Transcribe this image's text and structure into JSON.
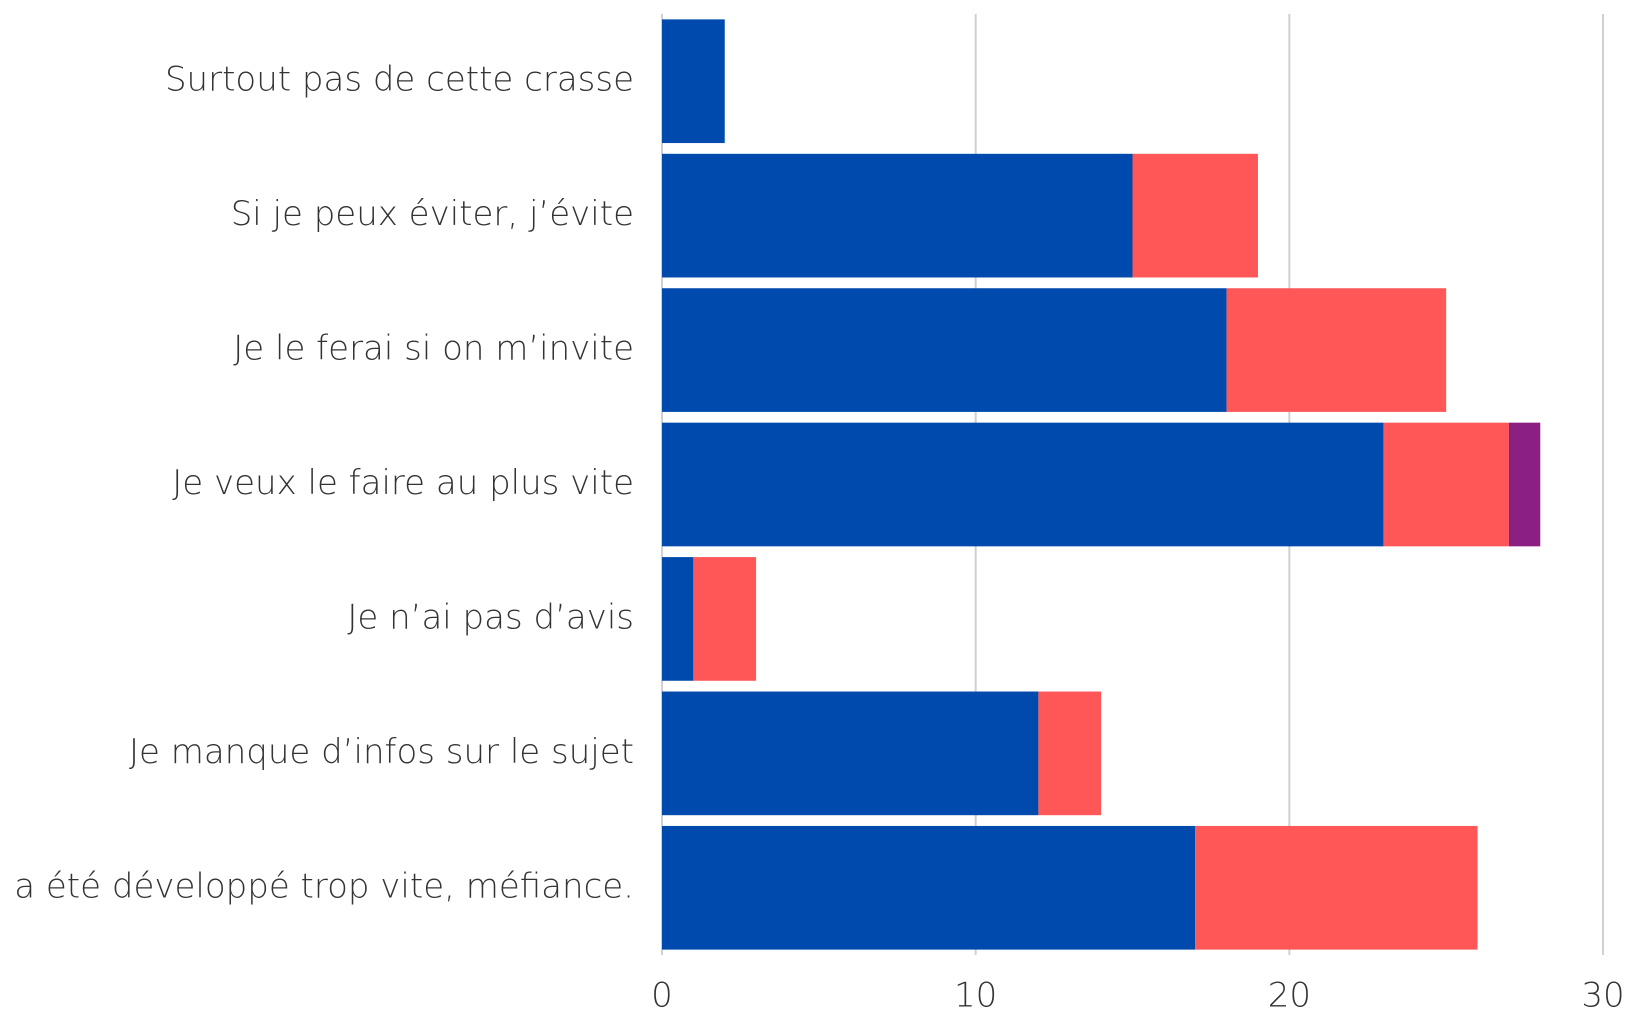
{
  "chart_data": {
    "type": "stacked_barh",
    "categories": [
      "Surtout pas de cette crasse",
      "Si je peux éviter, j’évite",
      "Je le ferai si on m’invite",
      "Je veux le faire au plus vite",
      "Je n’ai pas d’avis",
      "Je manque d’infos sur le sujet",
      "Il a été développé trop vite, méfiance."
    ],
    "series": [
      {
        "color": "#004aad",
        "values": [
          2,
          15,
          18,
          23,
          1,
          12,
          17
        ]
      },
      {
        "color": "#ff5757",
        "values": [
          0,
          4,
          7,
          4,
          2,
          2,
          9
        ]
      },
      {
        "color": "#8c1f82",
        "values": [
          0,
          0,
          0,
          1,
          0,
          0,
          0
        ]
      }
    ],
    "xlim": [
      0,
      30
    ],
    "xticks": [
      0,
      10,
      20,
      30
    ],
    "grid": true
  }
}
